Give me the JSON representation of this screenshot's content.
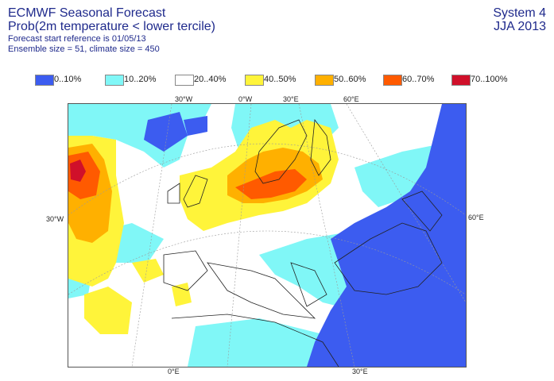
{
  "header": {
    "title": "ECMWF Seasonal Forecast",
    "subtitle": "Prob(2m temperature < lower tercile)",
    "start_ref": "Forecast start reference is 01/05/13",
    "ensemble": "Ensemble size = 51, climate size = 450",
    "system": "System 4",
    "season": "JJA 2013"
  },
  "legend": [
    {
      "label": "0..10%",
      "color": "#3c5cf0"
    },
    {
      "label": "10..20%",
      "color": "#80f7f7"
    },
    {
      "label": "20..40%",
      "color": "#ffffff"
    },
    {
      "label": "40..50%",
      "color": "#fff43a"
    },
    {
      "label": "50..60%",
      "color": "#ffb000"
    },
    {
      "label": "60..70%",
      "color": "#ff5a00"
    },
    {
      "label": "70..100%",
      "color": "#d0102a"
    }
  ],
  "grid_labels": {
    "top": [
      "30°W",
      "0°W",
      "30°E",
      "60°E"
    ],
    "left": "30°W",
    "right": "60°E",
    "bottom": [
      "0°E",
      "30°E"
    ]
  }
}
